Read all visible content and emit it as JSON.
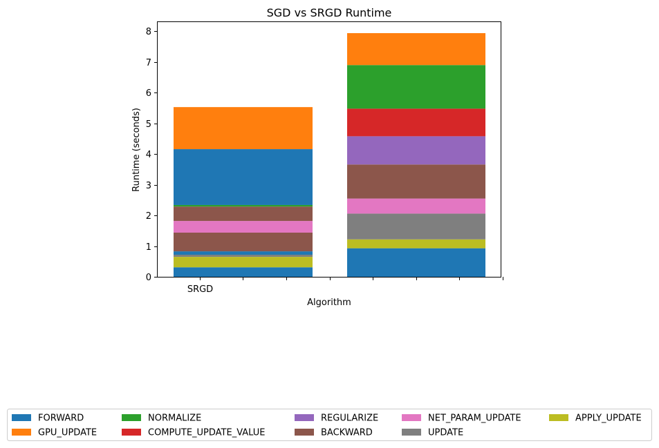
{
  "chart_data": {
    "type": "bar",
    "stacked": true,
    "title": "SGD vs SRGD Runtime",
    "xlabel": "Algorithm",
    "ylabel": "Runtime (seconds)",
    "ylim": [
      0,
      8.3
    ],
    "yticks": [
      0,
      1,
      2,
      3,
      4,
      5,
      6,
      7,
      8
    ],
    "xtick_labels": [
      "SRGD",
      "",
      "",
      "",
      "",
      "",
      "",
      ""
    ],
    "grid": false,
    "legend_position": "bottom",
    "bars": [
      {
        "segments": [
          {
            "component": "FORWARD",
            "start": 0.0,
            "end": 0.31
          },
          {
            "component": "APPLY_UPDATE",
            "start": 0.31,
            "end": 0.65
          },
          {
            "component": "UPDATE",
            "start": 0.65,
            "end": 0.72
          },
          {
            "component": "FORWARD",
            "start": 0.72,
            "end": 0.83
          },
          {
            "component": "BACKWARD",
            "start": 0.83,
            "end": 1.44
          },
          {
            "component": "NET_PARAM_UPDATE",
            "start": 1.44,
            "end": 1.82
          },
          {
            "component": "BACKWARD",
            "start": 1.82,
            "end": 2.29
          },
          {
            "component": "NORMALIZE",
            "start": 2.29,
            "end": 2.34
          },
          {
            "component": "FORWARD",
            "start": 2.34,
            "end": 4.16
          },
          {
            "component": "GPU_UPDATE",
            "start": 4.16,
            "end": 5.53
          }
        ]
      },
      {
        "segments": [
          {
            "component": "FORWARD",
            "start": 0.0,
            "end": 0.93
          },
          {
            "component": "APPLY_UPDATE",
            "start": 0.93,
            "end": 1.22
          },
          {
            "component": "UPDATE",
            "start": 1.22,
            "end": 2.06
          },
          {
            "component": "NET_PARAM_UPDATE",
            "start": 2.06,
            "end": 2.55
          },
          {
            "component": "BACKWARD",
            "start": 2.55,
            "end": 3.66
          },
          {
            "component": "REGULARIZE",
            "start": 3.66,
            "end": 4.58
          },
          {
            "component": "COMPUTE_UPDATE_VALUE",
            "start": 4.58,
            "end": 5.48
          },
          {
            "component": "NORMALIZE",
            "start": 5.48,
            "end": 6.9
          },
          {
            "component": "GPU_UPDATE",
            "start": 6.9,
            "end": 7.94
          }
        ]
      }
    ],
    "legend": [
      {
        "name": "FORWARD",
        "color": "#1f77b4"
      },
      {
        "name": "GPU_UPDATE",
        "color": "#ff7f0e"
      },
      {
        "name": "NORMALIZE",
        "color": "#2ca02c"
      },
      {
        "name": "COMPUTE_UPDATE_VALUE",
        "color": "#d62728"
      },
      {
        "name": "REGULARIZE",
        "color": "#9467bd"
      },
      {
        "name": "BACKWARD",
        "color": "#8c564b"
      },
      {
        "name": "NET_PARAM_UPDATE",
        "color": "#e377c2"
      },
      {
        "name": "UPDATE",
        "color": "#7f7f7f"
      },
      {
        "name": "APPLY_UPDATE",
        "color": "#bcbd22"
      }
    ]
  }
}
